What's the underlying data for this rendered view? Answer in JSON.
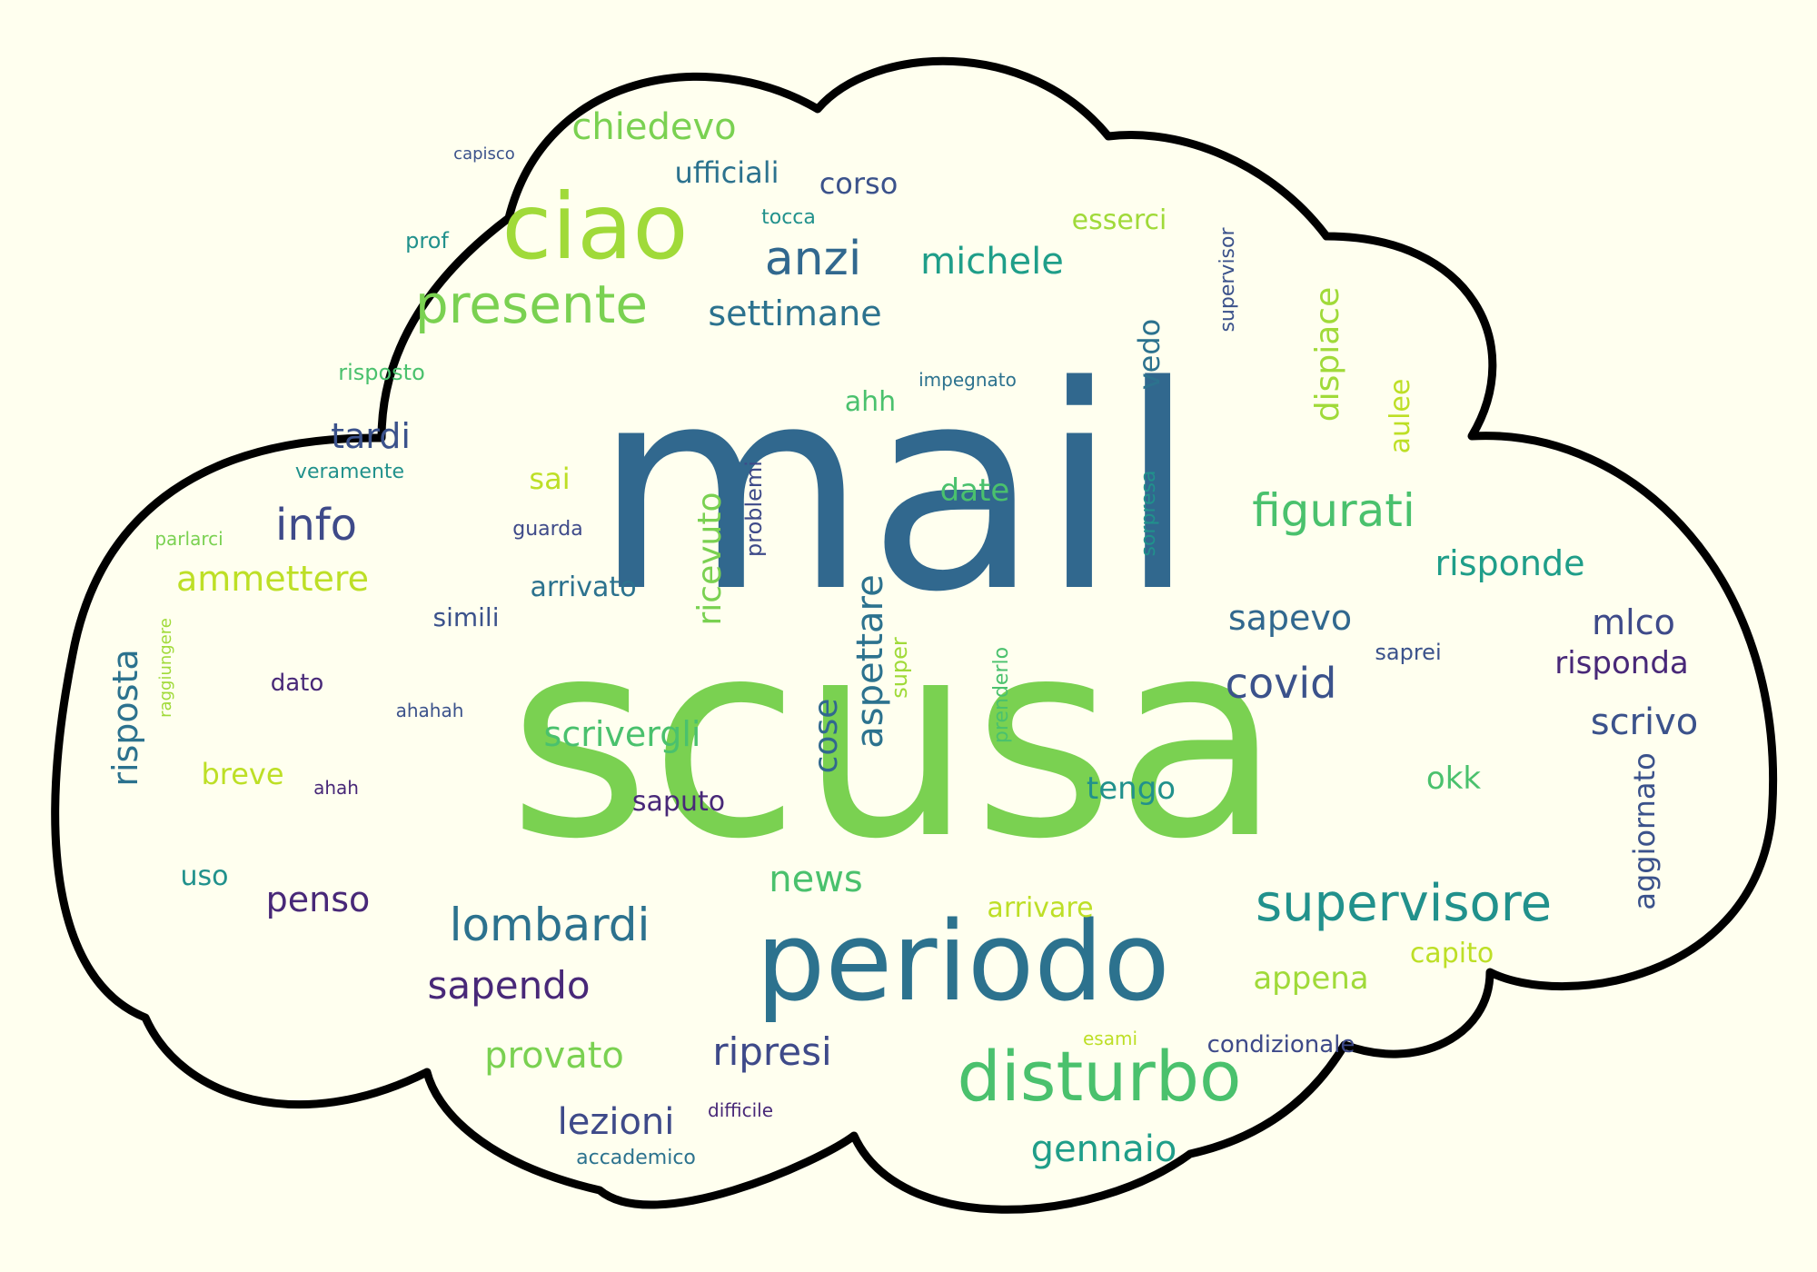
{
  "words": [
    {
      "text": "scusa",
      "color": "#7AD151"
    },
    {
      "text": "mail",
      "color": "#31688E"
    },
    {
      "text": "periodo",
      "color": "#2C728E"
    },
    {
      "text": "ciao",
      "color": "#A0DA39"
    },
    {
      "text": "disturbo",
      "color": "#4AC16D"
    },
    {
      "text": "presente",
      "color": "#7AD151"
    },
    {
      "text": "anzi",
      "color": "#31688E"
    },
    {
      "text": "chiedevo",
      "color": "#7AD151"
    },
    {
      "text": "ufficiali",
      "color": "#2C728E"
    },
    {
      "text": "corso",
      "color": "#3B528B"
    },
    {
      "text": "capisco",
      "color": "#3B528B"
    },
    {
      "text": "tocca",
      "color": "#21918C"
    },
    {
      "text": "prof",
      "color": "#21918C"
    },
    {
      "text": "esserci",
      "color": "#A0DA39"
    },
    {
      "text": "supervisor",
      "color": "#3B528B"
    },
    {
      "text": "michele",
      "color": "#1F9E89"
    },
    {
      "text": "settimane",
      "color": "#2C728E"
    },
    {
      "text": "vedo",
      "color": "#2C728E"
    },
    {
      "text": "dispiace",
      "color": "#A0DA39"
    },
    {
      "text": "aulee",
      "color": "#BDDF26"
    },
    {
      "text": "risposto",
      "color": "#4AC16D"
    },
    {
      "text": "impegnato",
      "color": "#2C728E"
    },
    {
      "text": "ahh",
      "color": "#4AC16D"
    },
    {
      "text": "tardi",
      "color": "#3B528B"
    },
    {
      "text": "veramente",
      "color": "#21918C"
    },
    {
      "text": "sai",
      "color": "#BDDF26"
    },
    {
      "text": "problemi",
      "color": "#3E4A89"
    },
    {
      "text": "date",
      "color": "#4AC16D"
    },
    {
      "text": "sorpresa",
      "color": "#21918C"
    },
    {
      "text": "figurati",
      "color": "#4AC16D"
    },
    {
      "text": "info",
      "color": "#3E4A89"
    },
    {
      "text": "parlarci",
      "color": "#7AD151"
    },
    {
      "text": "guarda",
      "color": "#3E4A89"
    },
    {
      "text": "ricevuto",
      "color": "#7AD151"
    },
    {
      "text": "risponde",
      "color": "#1F9E89"
    },
    {
      "text": "ammettere",
      "color": "#BDDF26"
    },
    {
      "text": "arrivato",
      "color": "#2C728E"
    },
    {
      "text": "aspettare",
      "color": "#2C728E"
    },
    {
      "text": "sapevo",
      "color": "#31688E"
    },
    {
      "text": "raggiungere",
      "color": "#A0DA39"
    },
    {
      "text": "simili",
      "color": "#3B528B"
    },
    {
      "text": "mlco",
      "color": "#3E4A89"
    },
    {
      "text": "risposta",
      "color": "#2C728E"
    },
    {
      "text": "saprei",
      "color": "#3B528B"
    },
    {
      "text": "super",
      "color": "#A0DA39"
    },
    {
      "text": "prenderlo",
      "color": "#4AC16D"
    },
    {
      "text": "risponda",
      "color": "#482878"
    },
    {
      "text": "dato",
      "color": "#482878"
    },
    {
      "text": "covid",
      "color": "#3B528B"
    },
    {
      "text": "ahahah",
      "color": "#3B528B"
    },
    {
      "text": "scrivergli",
      "color": "#4AC16D"
    },
    {
      "text": "cose",
      "color": "#31688E"
    },
    {
      "text": "scrivo",
      "color": "#3B528B"
    },
    {
      "text": "breve",
      "color": "#BDDF26"
    },
    {
      "text": "ahah",
      "color": "#482878"
    },
    {
      "text": "okk",
      "color": "#4AC16D"
    },
    {
      "text": "saputo",
      "color": "#482878"
    },
    {
      "text": "tengo",
      "color": "#21918C"
    },
    {
      "text": "aggiornato",
      "color": "#3B528B"
    },
    {
      "text": "uso",
      "color": "#21918C"
    },
    {
      "text": "news",
      "color": "#4AC16D"
    },
    {
      "text": "penso",
      "color": "#482878"
    },
    {
      "text": "supervisore",
      "color": "#21918C"
    },
    {
      "text": "arrivare",
      "color": "#BDDF26"
    },
    {
      "text": "lombardi",
      "color": "#2C728E"
    },
    {
      "text": "capito",
      "color": "#BDDF26"
    },
    {
      "text": "appena",
      "color": "#A0DA39"
    },
    {
      "text": "sapendo",
      "color": "#482878"
    },
    {
      "text": "esami",
      "color": "#BDDF26"
    },
    {
      "text": "condizionale",
      "color": "#3E4A89"
    },
    {
      "text": "provato",
      "color": "#7AD151"
    },
    {
      "text": "ripresi",
      "color": "#3E4A89"
    },
    {
      "text": "lezioni",
      "color": "#3E4A89"
    },
    {
      "text": "difficile",
      "color": "#482878"
    },
    {
      "text": "accademico",
      "color": "#2C728E"
    },
    {
      "text": "gennaio",
      "color": "#1F9E89"
    }
  ],
  "cloud": {
    "fill": "#FFFFEF",
    "stroke": "#000000",
    "page_bg": "#FFFFEF"
  }
}
